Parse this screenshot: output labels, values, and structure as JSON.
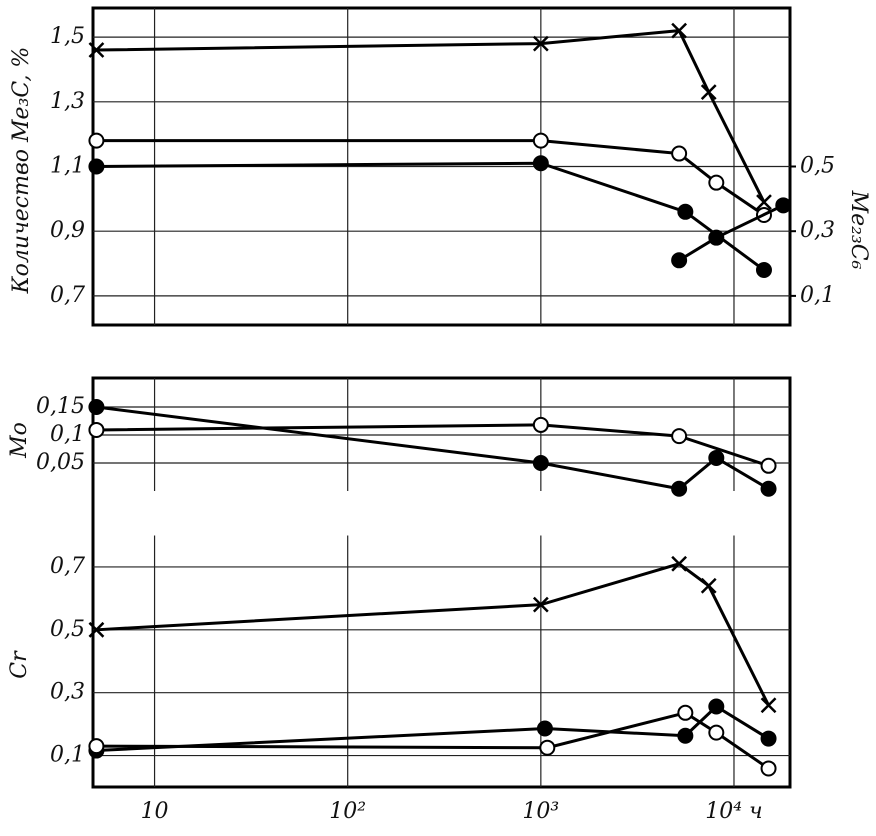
{
  "chart_data": [
    {
      "type": "line",
      "y_label": "Количество Me₃C, %",
      "y2_label": "Me₂₃C₆",
      "xscale": "log",
      "xlim": [
        4.8,
        19500
      ],
      "xticks": [
        10,
        100,
        1000,
        10000
      ],
      "ylim": [
        0.61,
        1.59
      ],
      "yticks": [
        {
          "value": 0.7,
          "label": "0,7"
        },
        {
          "value": 0.9,
          "label": "0,9"
        },
        {
          "value": 1.1,
          "label": "1,1"
        },
        {
          "value": 1.3,
          "label": "1,3"
        },
        {
          "value": 1.5,
          "label": "1,5"
        }
      ],
      "y2lim": [
        0.01,
        0.99
      ],
      "y2ticks": [
        {
          "value": 0.1,
          "label": "0,1"
        },
        {
          "value": 0.3,
          "label": "0,3"
        },
        {
          "value": 0.5,
          "label": "0,5"
        }
      ],
      "grid": true,
      "series": [
        {
          "marker": "x",
          "color": "#000000",
          "x": [
            5,
            1000,
            5200,
            7400,
            14300
          ],
          "values": [
            1.46,
            1.48,
            1.52,
            1.33,
            0.99
          ]
        },
        {
          "marker": "open",
          "color": "#000000",
          "x": [
            5,
            1000,
            5200,
            8100,
            14300
          ],
          "values": [
            1.18,
            1.18,
            1.14,
            1.05,
            0.95
          ]
        },
        {
          "marker": "filled",
          "color": "#000000",
          "x": [
            5,
            1000,
            5600,
            14300
          ],
          "values": [
            1.1,
            1.11,
            0.96,
            0.78
          ]
        },
        {
          "marker": "filled",
          "color": "#000000",
          "axis": "y2",
          "x": [
            5200,
            8100,
            18000
          ],
          "values": [
            0.21,
            0.28,
            0.38
          ]
        }
      ]
    },
    {
      "type": "line",
      "y_label": "Mo",
      "xscale": "log",
      "xlim": [
        4.8,
        19500
      ],
      "xticks": [
        10,
        100,
        1000,
        10000
      ],
      "ylim": [
        0,
        0.19
      ],
      "yticks": [
        {
          "value": 0.05,
          "label": "0,05"
        },
        {
          "value": 0.1,
          "label": "0,1"
        },
        {
          "value": 0.15,
          "label": "0,15"
        }
      ],
      "grid": true,
      "series": [
        {
          "marker": "filled",
          "color": "#000000",
          "x": [
            5,
            1000,
            5200,
            8100,
            15100
          ],
          "values": [
            0.15,
            0.05,
            0.004,
            0.059,
            0.004
          ]
        },
        {
          "marker": "open",
          "color": "#000000",
          "x": [
            5,
            1000,
            5200,
            15100
          ],
          "values": [
            0.109,
            0.118,
            0.098,
            0.045
          ]
        }
      ]
    },
    {
      "type": "line",
      "y_label": "Cr",
      "xscale": "log",
      "xlim": [
        4.8,
        19500
      ],
      "xticks": [
        {
          "value": 10,
          "label": "10"
        },
        {
          "value": 100,
          "label": "10²"
        },
        {
          "value": 1000,
          "label": "10³"
        },
        {
          "value": 10000,
          "label": "10⁴ ч"
        }
      ],
      "ylim": [
        0,
        0.8
      ],
      "yticks": [
        {
          "value": 0.1,
          "label": "0,1"
        },
        {
          "value": 0.3,
          "label": "0,3"
        },
        {
          "value": 0.5,
          "label": "0,5"
        },
        {
          "value": 0.7,
          "label": "0,7"
        }
      ],
      "grid": true,
      "series": [
        {
          "marker": "x",
          "color": "#000000",
          "x": [
            5,
            1000,
            5200,
            7400,
            15100
          ],
          "values": [
            0.5,
            0.58,
            0.71,
            0.64,
            0.26
          ]
        },
        {
          "marker": "filled",
          "color": "#000000",
          "x": [
            5,
            1050,
            5600,
            8100,
            15100
          ],
          "values": [
            0.116,
            0.186,
            0.163,
            0.256,
            0.154
          ]
        },
        {
          "marker": "open",
          "color": "#000000",
          "x": [
            5,
            1080,
            5600,
            8100,
            15100
          ],
          "values": [
            0.13,
            0.125,
            0.236,
            0.173,
            0.059
          ]
        }
      ]
    }
  ]
}
